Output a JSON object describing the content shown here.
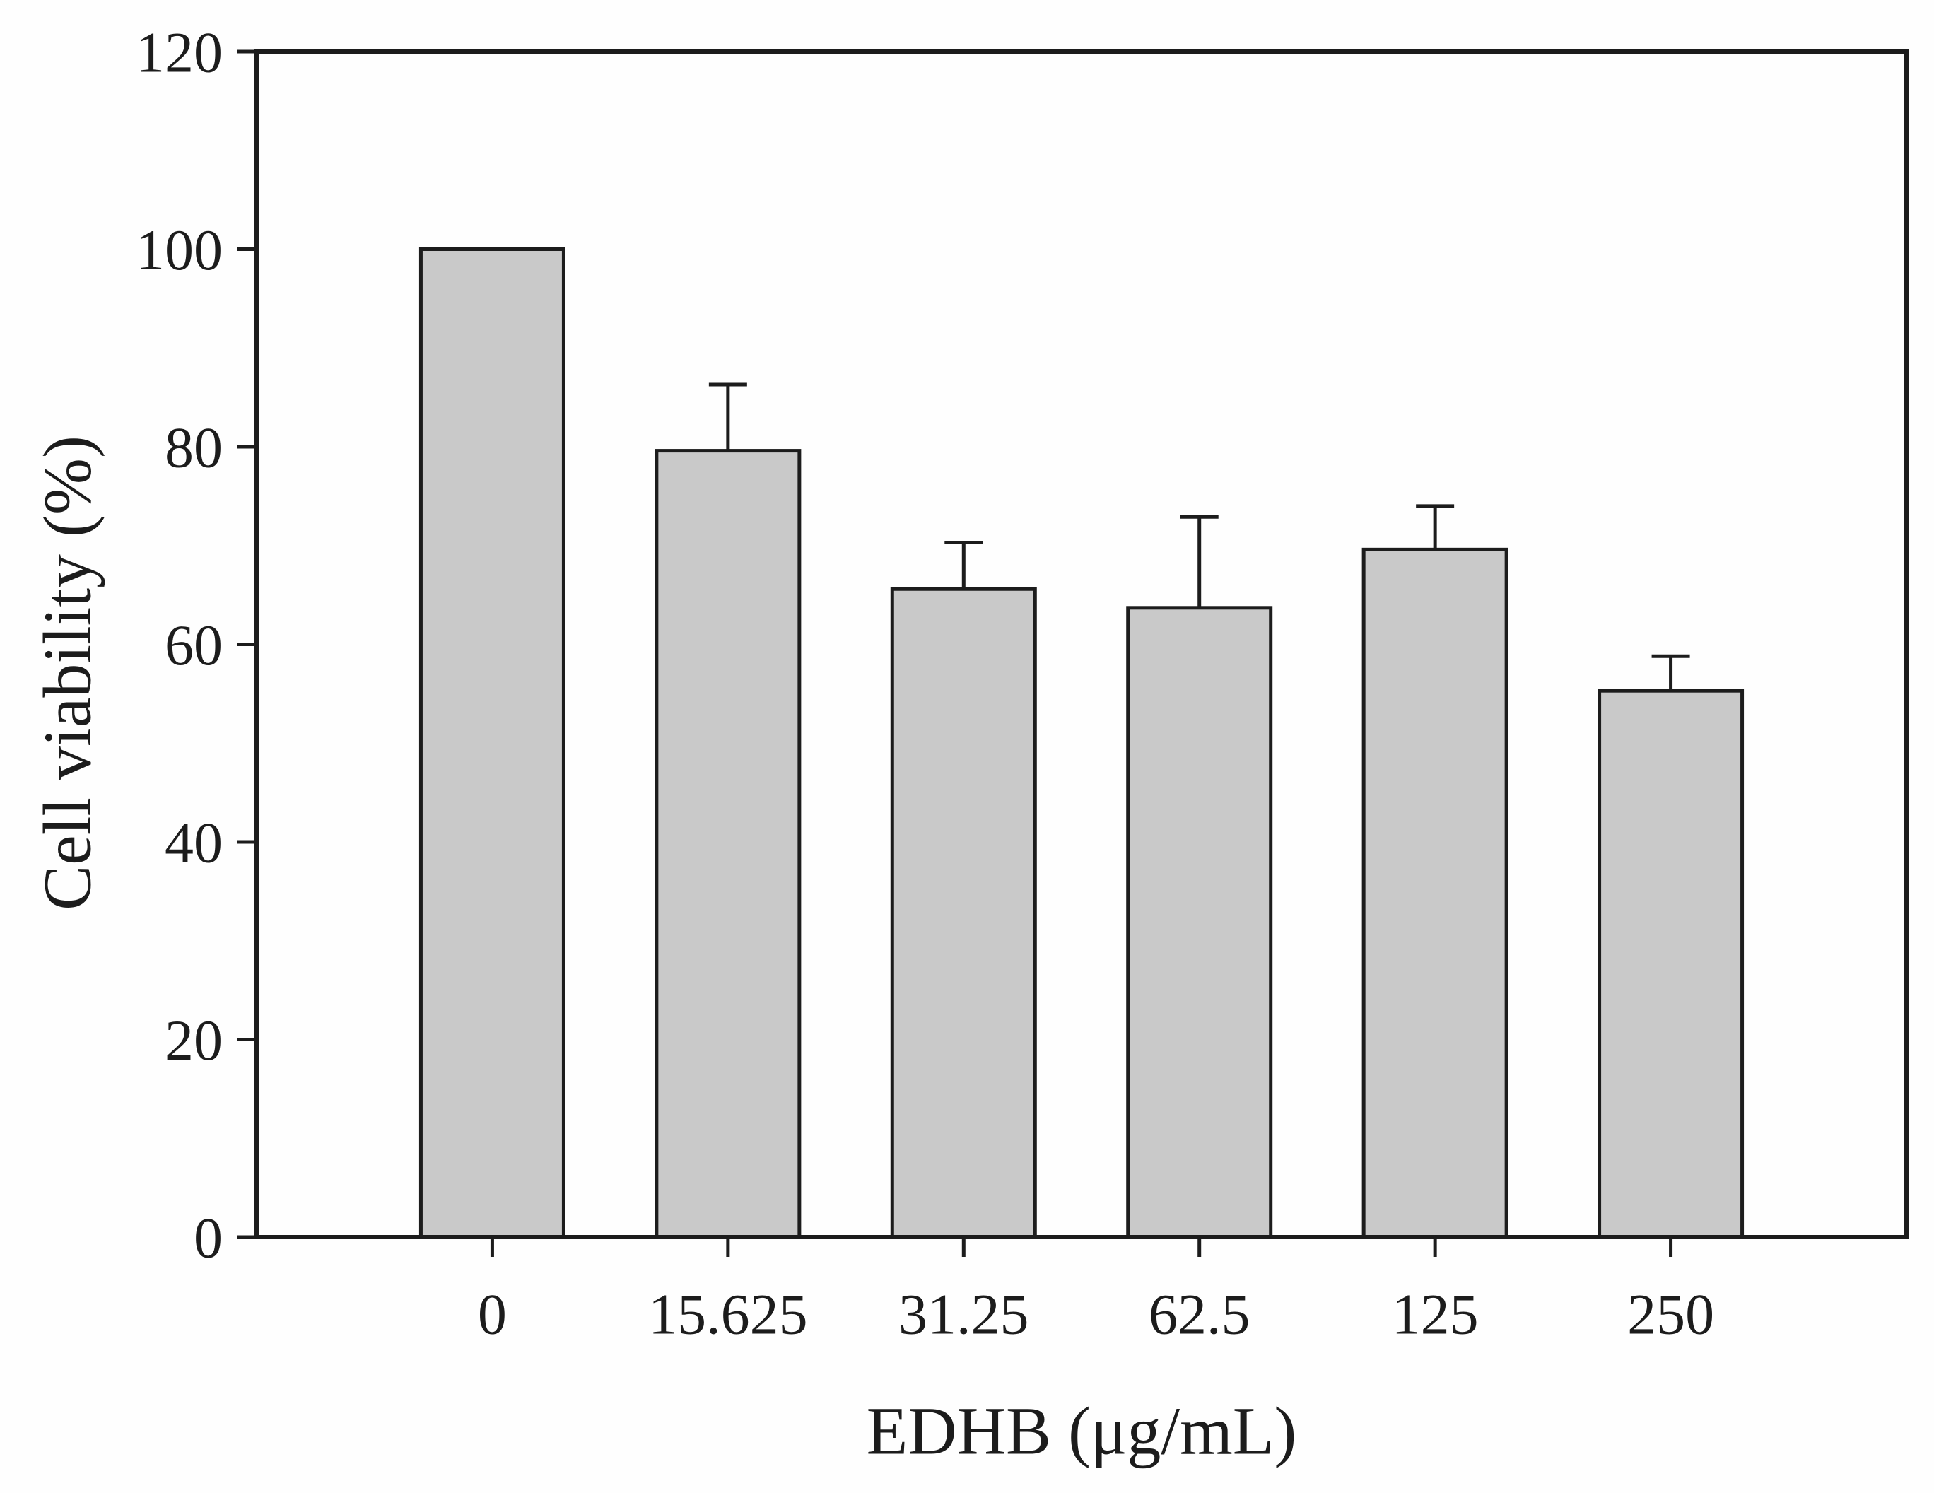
{
  "figure": {
    "background": "#fefefe",
    "line_color": "#1c1c1c",
    "text_color": "#1c1c1c"
  },
  "chart_data": {
    "type": "bar",
    "title": "",
    "xlabel": "EDHB (μg/mL)",
    "ylabel": "Cell viability (%)",
    "categories": [
      "0",
      "15.625",
      "31.25",
      "62.5",
      "125",
      "250"
    ],
    "values": [
      100,
      79.6,
      65.6,
      63.7,
      69.6,
      55.3
    ],
    "errors_plus": [
      0,
      6.7,
      4.7,
      9.2,
      4.4,
      3.5
    ],
    "y_ticks": [
      0,
      20,
      40,
      60,
      80,
      100,
      120
    ],
    "ylim": [
      0,
      120
    ],
    "bar_fill": "#c9c9c9",
    "bar_edge": "#1c1c1c",
    "grid": false,
    "legend": null,
    "frame": "box",
    "error_bar_direction": "up"
  }
}
